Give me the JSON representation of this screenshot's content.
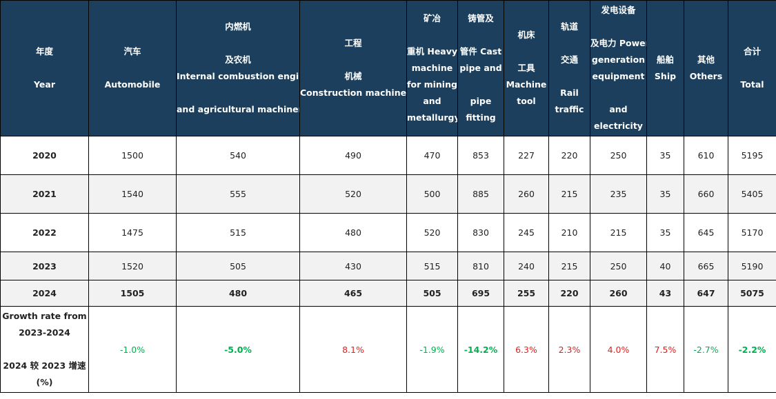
{
  "colors": {
    "header_bg": "#1b3f5c",
    "positive": "#e02020",
    "negative": "#00b050"
  },
  "headers": [
    {
      "lines": [
        "年度",
        "",
        "Year"
      ]
    },
    {
      "lines": [
        "汽车",
        "",
        "Automobile"
      ]
    },
    {
      "lines": [
        "内燃机",
        "",
        "及农机",
        "Internal combustion engine",
        "",
        "and agricultural machinery"
      ]
    },
    {
      "lines": [
        "工程",
        "",
        "机械",
        "Construction machinery"
      ]
    },
    {
      "lines": [
        "矿冶",
        "",
        "重机 Heavy",
        "machine",
        "for mining",
        "and",
        "metallurgy"
      ]
    },
    {
      "lines": [
        "铸管及",
        "",
        "管件 Cast",
        "pipe and",
        "",
        "pipe",
        "fitting"
      ]
    },
    {
      "lines": [
        "机床",
        "",
        "工具",
        "Machine",
        "tool"
      ]
    },
    {
      "lines": [
        "轨道",
        "",
        "交通",
        "",
        "Rail",
        "traffic"
      ]
    },
    {
      "lines": [
        "发电设备",
        "",
        "及电力 Power",
        "generation",
        "equipment",
        "",
        "and",
        "electricity"
      ]
    },
    {
      "lines": [
        "船舶",
        "Ship"
      ]
    },
    {
      "lines": [
        "其他",
        "Others"
      ]
    },
    {
      "lines": [
        "合计",
        "",
        "Total"
      ]
    }
  ],
  "rows": [
    {
      "year": "2020",
      "values": [
        "1500",
        "540",
        "490",
        "470",
        "853",
        "227",
        "220",
        "250",
        "35",
        "610",
        "5195"
      ]
    },
    {
      "year": "2021",
      "values": [
        "1540",
        "555",
        "520",
        "500",
        "885",
        "260",
        "215",
        "235",
        "35",
        "660",
        "5405"
      ]
    },
    {
      "year": "2022",
      "values": [
        "1475",
        "515",
        "480",
        "520",
        "830",
        "245",
        "210",
        "215",
        "35",
        "645",
        "5170"
      ]
    },
    {
      "year": "2023",
      "values": [
        "1520",
        "505",
        "430",
        "515",
        "810",
        "240",
        "215",
        "250",
        "40",
        "665",
        "5190"
      ]
    },
    {
      "year": "2024",
      "values": [
        "1505",
        "480",
        "465",
        "505",
        "695",
        "255",
        "220",
        "260",
        "43",
        "647",
        "5075"
      ]
    }
  ],
  "growth": {
    "label_lines": [
      "Growth rate from",
      "2023-2024",
      "",
      "2024 较 2023 增速",
      "(%)"
    ],
    "values": [
      "-1.0%",
      "-5.0%",
      "8.1%",
      "-1.9%",
      "-14.2%",
      "6.3%",
      "2.3%",
      "4.0%",
      "7.5%",
      "-2.7%",
      "-2.2%"
    ],
    "colors": [
      "green",
      "green",
      "red",
      "green",
      "green",
      "red",
      "red",
      "red",
      "red",
      "green",
      "green"
    ],
    "bold": [
      false,
      true,
      false,
      false,
      true,
      false,
      false,
      false,
      false,
      false,
      true
    ]
  }
}
